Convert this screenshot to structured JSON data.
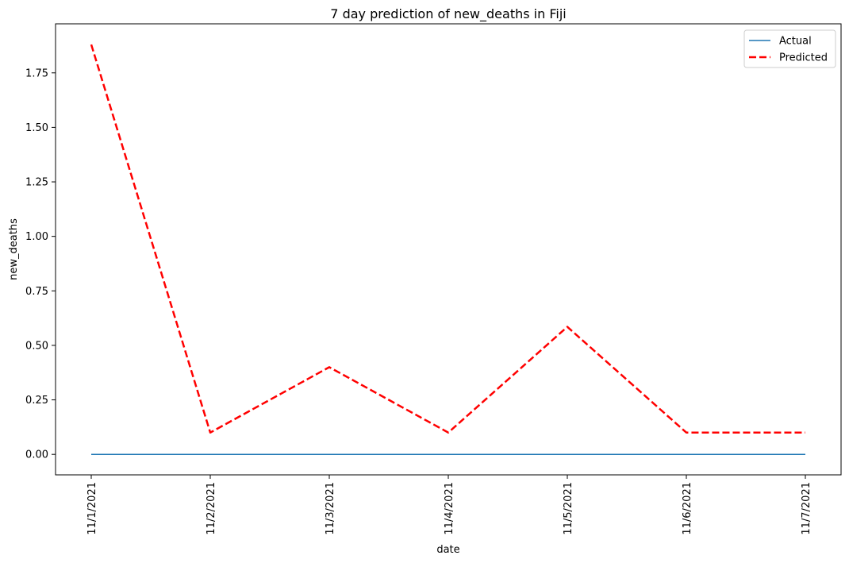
{
  "chart_data": {
    "type": "line",
    "title": "7 day prediction of new_deaths in Fiji",
    "xlabel": "date",
    "ylabel": "new_deaths",
    "categories": [
      "11/1/2021",
      "11/2/2021",
      "11/3/2021",
      "11/4/2021",
      "11/5/2021",
      "11/6/2021",
      "11/7/2021"
    ],
    "yticks": [
      0.0,
      0.25,
      0.5,
      0.75,
      1.0,
      1.25,
      1.5,
      1.75
    ],
    "ytick_labels": [
      "0.00",
      "0.25",
      "0.50",
      "0.75",
      "1.00",
      "1.25",
      "1.50",
      "1.75"
    ],
    "ylim": [
      -0.094,
      1.975
    ],
    "grid": false,
    "legend_position": "top-right",
    "series": [
      {
        "name": "Actual",
        "values": [
          0,
          0,
          0,
          0,
          0,
          0,
          0
        ],
        "color": "#1f77b4",
        "style": "solid"
      },
      {
        "name": "Predicted",
        "values": [
          1.88,
          0.1,
          0.4,
          0.1,
          0.585,
          0.1,
          0.1
        ],
        "color": "#ff0000",
        "style": "dashed"
      }
    ]
  }
}
